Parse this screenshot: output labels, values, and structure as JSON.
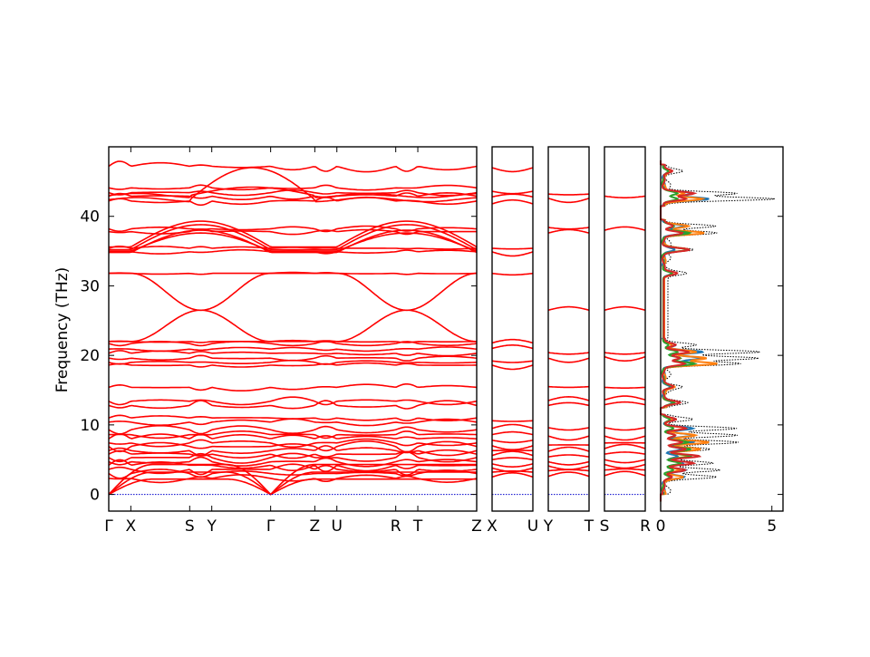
{
  "chart_data": {
    "type": "line",
    "ylabel": "Frequency (THz)",
    "ylim": [
      -2.4,
      50
    ],
    "y_ticks": [
      0,
      10,
      20,
      30,
      40
    ],
    "y_tick_labels": [
      "0",
      "10",
      "20",
      "30",
      "40"
    ],
    "band_color": "#ff0000",
    "zero_line_color": "#0000cc",
    "segments": [
      {
        "name": "main",
        "ticks": [
          {
            "pos": 0.0,
            "label": "Γ"
          },
          {
            "pos": 0.06,
            "label": "X"
          },
          {
            "pos": 0.22,
            "label": "S"
          },
          {
            "pos": 0.28,
            "label": "Y"
          },
          {
            "pos": 0.44,
            "label": "Γ"
          },
          {
            "pos": 0.56,
            "label": "Z"
          },
          {
            "pos": 0.62,
            "label": "U"
          },
          {
            "pos": 0.78,
            "label": "R"
          },
          {
            "pos": 0.84,
            "label": "T"
          },
          {
            "pos": 1.0,
            "label": "Z"
          }
        ]
      },
      {
        "name": "X-U",
        "ticks": [
          {
            "pos": 0.0,
            "label": "X"
          },
          {
            "pos": 1.0,
            "label": "U"
          }
        ]
      },
      {
        "name": "Y-T",
        "ticks": [
          {
            "pos": 0.0,
            "label": "Y"
          },
          {
            "pos": 1.0,
            "label": "T"
          }
        ]
      },
      {
        "name": "S-R",
        "ticks": [
          {
            "pos": 0.0,
            "label": "S"
          },
          {
            "pos": 1.0,
            "label": "R"
          }
        ]
      }
    ],
    "dos": {
      "xlim": [
        0,
        5.5
      ],
      "x_ticks": [
        0,
        5
      ],
      "x_tick_labels": [
        "0",
        "5"
      ],
      "total_style": "black dotted",
      "projection_colors": [
        "#1f77b4",
        "#ff7f0e",
        "#2ca02c",
        "#d62728"
      ]
    }
  }
}
